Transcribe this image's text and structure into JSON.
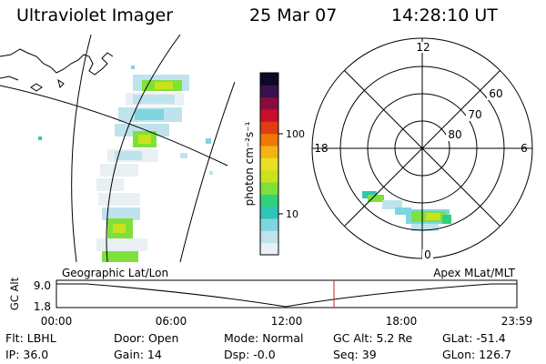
{
  "header": {
    "title": "Ultraviolet Imager",
    "date": "25 Mar 07",
    "time": "14:28:10 UT"
  },
  "colorbar": {
    "unit_label": "photon cm⁻²s⁻¹",
    "ticks": [
      "100",
      "10"
    ],
    "colors": [
      "#e8f0f4",
      "#bfe3ec",
      "#7fd6df",
      "#2fc6b6",
      "#32d07a",
      "#7fe03a",
      "#c8e21e",
      "#e8e020",
      "#f4b214",
      "#f07808",
      "#e03c10",
      "#c8102a",
      "#8a0c3c",
      "#3a1050",
      "#0a0a28"
    ]
  },
  "polar": {
    "mlt_labels": [
      "12",
      "18",
      "6",
      "0"
    ],
    "lat_labels": [
      "60",
      "70",
      "80"
    ]
  },
  "timeline": {
    "ylabel": "GC Alt",
    "y_ticks": [
      "9.0",
      "1.8"
    ],
    "left_title": "Geographic Lat/Lon",
    "right_title": "Apex MLat/MLT",
    "x_ticks": [
      "00:00",
      "06:00",
      "12:00",
      "18:00",
      "23:59"
    ],
    "current_time": "14:28",
    "cursor_color": "#cc2020"
  },
  "status": {
    "flt": "Flt: LBHL",
    "ip": "IP: 36.0",
    "door": "Door: Open",
    "gain": "Gain: 14",
    "mode": "Mode: Normal",
    "dsp": "Dsp:  -0.0",
    "gc_alt": "GC Alt: 5.2 Re",
    "seq": "Seq: 39",
    "glat": "GLat: -51.4",
    "glon": "GLon: 126.7"
  }
}
